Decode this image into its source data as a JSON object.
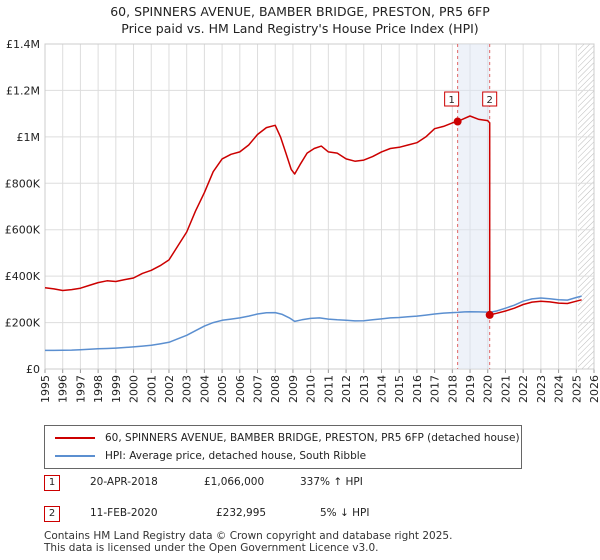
{
  "title_line1": "60, SPINNERS AVENUE, BAMBER BRIDGE, PRESTON, PR5 6FP",
  "title_line2": "Price paid vs. HM Land Registry's House Price Index (HPI)",
  "colors": {
    "property": "#cc0000",
    "hpi": "#5b8fd0",
    "grid": "#dddddd",
    "axis": "#999999"
  },
  "legend": {
    "property_label": "60, SPINNERS AVENUE, BAMBER BRIDGE, PRESTON, PR5 6FP (detached house)",
    "hpi_label": "HPI: Average price, detached house, South Ribble"
  },
  "transactions": [
    {
      "num": "1",
      "date": "20-APR-2018",
      "price": "£1,066,000",
      "hpi_delta": "337% ↑ HPI"
    },
    {
      "num": "2",
      "date": "11-FEB-2020",
      "price": "£232,995",
      "hpi_delta": "5% ↓ HPI"
    }
  ],
  "footer_line1": "Contains HM Land Registry data © Crown copyright and database right 2025.",
  "footer_line2": "This data is licensed under the Open Government Licence v3.0.",
  "chart_data": {
    "type": "line",
    "y_ticks": [
      0,
      200000,
      400000,
      600000,
      800000,
      1000000,
      1200000,
      1400000
    ],
    "y_tick_labels": [
      "£0",
      "£200K",
      "£400K",
      "£600K",
      "£800K",
      "£1M",
      "£1.2M",
      "£1.4M"
    ],
    "x_ticks": [
      1995,
      1996,
      1997,
      1998,
      1999,
      2000,
      2001,
      2002,
      2003,
      2004,
      2005,
      2006,
      2007,
      2008,
      2009,
      2010,
      2011,
      2012,
      2013,
      2014,
      2015,
      2016,
      2017,
      2018,
      2019,
      2020,
      2021,
      2022,
      2023,
      2024,
      2025,
      2026
    ],
    "xlim": [
      1995,
      2026
    ],
    "ylim": [
      0,
      1400000
    ],
    "future_shade_from": 2025.1,
    "markers": [
      {
        "label": "1",
        "x": 2018.3,
        "y": 1066000
      },
      {
        "label": "2",
        "x": 2020.11,
        "y": 232995
      }
    ],
    "series": [
      {
        "name": "60, SPINNERS AVENUE, BAMBER BRIDGE, PRESTON, PR5 6FP (detached house)",
        "color": "#cc0000",
        "points": [
          [
            1995.0,
            350000
          ],
          [
            1995.5,
            345000
          ],
          [
            1996.0,
            338000
          ],
          [
            1996.5,
            342000
          ],
          [
            1997.0,
            348000
          ],
          [
            1997.5,
            360000
          ],
          [
            1998.0,
            372000
          ],
          [
            1998.5,
            380000
          ],
          [
            1999.0,
            377000
          ],
          [
            1999.5,
            385000
          ],
          [
            2000.0,
            392000
          ],
          [
            2000.5,
            412000
          ],
          [
            2001.0,
            425000
          ],
          [
            2001.5,
            445000
          ],
          [
            2002.0,
            470000
          ],
          [
            2002.5,
            530000
          ],
          [
            2003.0,
            590000
          ],
          [
            2003.5,
            680000
          ],
          [
            2004.0,
            760000
          ],
          [
            2004.5,
            850000
          ],
          [
            2005.0,
            905000
          ],
          [
            2005.5,
            925000
          ],
          [
            2006.0,
            935000
          ],
          [
            2006.5,
            965000
          ],
          [
            2007.0,
            1010000
          ],
          [
            2007.5,
            1040000
          ],
          [
            2008.0,
            1050000
          ],
          [
            2008.3,
            1000000
          ],
          [
            2008.6,
            930000
          ],
          [
            2008.9,
            860000
          ],
          [
            2009.1,
            840000
          ],
          [
            2009.4,
            880000
          ],
          [
            2009.8,
            930000
          ],
          [
            2010.2,
            950000
          ],
          [
            2010.6,
            960000
          ],
          [
            2011.0,
            935000
          ],
          [
            2011.5,
            930000
          ],
          [
            2012.0,
            905000
          ],
          [
            2012.5,
            895000
          ],
          [
            2013.0,
            900000
          ],
          [
            2013.5,
            915000
          ],
          [
            2014.0,
            935000
          ],
          [
            2014.5,
            950000
          ],
          [
            2015.0,
            955000
          ],
          [
            2015.5,
            965000
          ],
          [
            2016.0,
            975000
          ],
          [
            2016.5,
            1000000
          ],
          [
            2017.0,
            1035000
          ],
          [
            2017.5,
            1045000
          ],
          [
            2018.0,
            1060000
          ],
          [
            2018.3,
            1066000
          ],
          [
            2018.7,
            1080000
          ],
          [
            2019.0,
            1090000
          ],
          [
            2019.5,
            1075000
          ],
          [
            2020.0,
            1070000
          ],
          [
            2020.11,
            1060000
          ],
          [
            2020.11,
            232995
          ],
          [
            2020.5,
            240000
          ],
          [
            2021.0,
            250000
          ],
          [
            2021.5,
            262000
          ],
          [
            2022.0,
            278000
          ],
          [
            2022.5,
            288000
          ],
          [
            2023.0,
            292000
          ],
          [
            2023.5,
            289000
          ],
          [
            2024.0,
            284000
          ],
          [
            2024.5,
            282000
          ],
          [
            2025.0,
            292000
          ],
          [
            2025.3,
            298000
          ]
        ]
      },
      {
        "name": "HPI: Average price, detached house, South Ribble",
        "color": "#5b8fd0",
        "points": [
          [
            1995.0,
            80000
          ],
          [
            1995.5,
            80000
          ],
          [
            1996.0,
            80500
          ],
          [
            1996.5,
            81500
          ],
          [
            1997.0,
            83000
          ],
          [
            1997.5,
            85000
          ],
          [
            1998.0,
            87000
          ],
          [
            1998.5,
            88500
          ],
          [
            1999.0,
            90000
          ],
          [
            1999.5,
            92500
          ],
          [
            2000.0,
            95000
          ],
          [
            2000.5,
            98500
          ],
          [
            2001.0,
            102000
          ],
          [
            2001.5,
            108000
          ],
          [
            2002.0,
            115000
          ],
          [
            2002.5,
            130000
          ],
          [
            2003.0,
            145000
          ],
          [
            2003.5,
            165000
          ],
          [
            2004.0,
            185000
          ],
          [
            2004.5,
            200000
          ],
          [
            2005.0,
            210000
          ],
          [
            2005.5,
            215000
          ],
          [
            2006.0,
            220000
          ],
          [
            2006.5,
            228000
          ],
          [
            2007.0,
            237000
          ],
          [
            2007.5,
            242000
          ],
          [
            2008.0,
            243000
          ],
          [
            2008.4,
            235000
          ],
          [
            2008.8,
            220000
          ],
          [
            2009.1,
            205000
          ],
          [
            2009.5,
            212000
          ],
          [
            2010.0,
            218000
          ],
          [
            2010.5,
            220000
          ],
          [
            2011.0,
            215000
          ],
          [
            2011.5,
            212000
          ],
          [
            2012.0,
            210000
          ],
          [
            2012.5,
            207000
          ],
          [
            2013.0,
            208000
          ],
          [
            2013.5,
            212000
          ],
          [
            2014.0,
            216000
          ],
          [
            2014.5,
            220000
          ],
          [
            2015.0,
            222000
          ],
          [
            2015.5,
            225000
          ],
          [
            2016.0,
            228000
          ],
          [
            2016.5,
            232000
          ],
          [
            2017.0,
            237000
          ],
          [
            2017.5,
            241000
          ],
          [
            2018.0,
            243000
          ],
          [
            2018.3,
            244000
          ],
          [
            2018.7,
            246000
          ],
          [
            2019.0,
            247000
          ],
          [
            2019.5,
            246000
          ],
          [
            2020.0,
            245000
          ],
          [
            2020.11,
            244000
          ],
          [
            2020.5,
            250000
          ],
          [
            2021.0,
            262000
          ],
          [
            2021.5,
            275000
          ],
          [
            2022.0,
            292000
          ],
          [
            2022.5,
            302000
          ],
          [
            2023.0,
            306000
          ],
          [
            2023.5,
            303000
          ],
          [
            2024.0,
            298000
          ],
          [
            2024.5,
            297000
          ],
          [
            2025.0,
            308000
          ],
          [
            2025.3,
            314000
          ]
        ]
      }
    ]
  }
}
